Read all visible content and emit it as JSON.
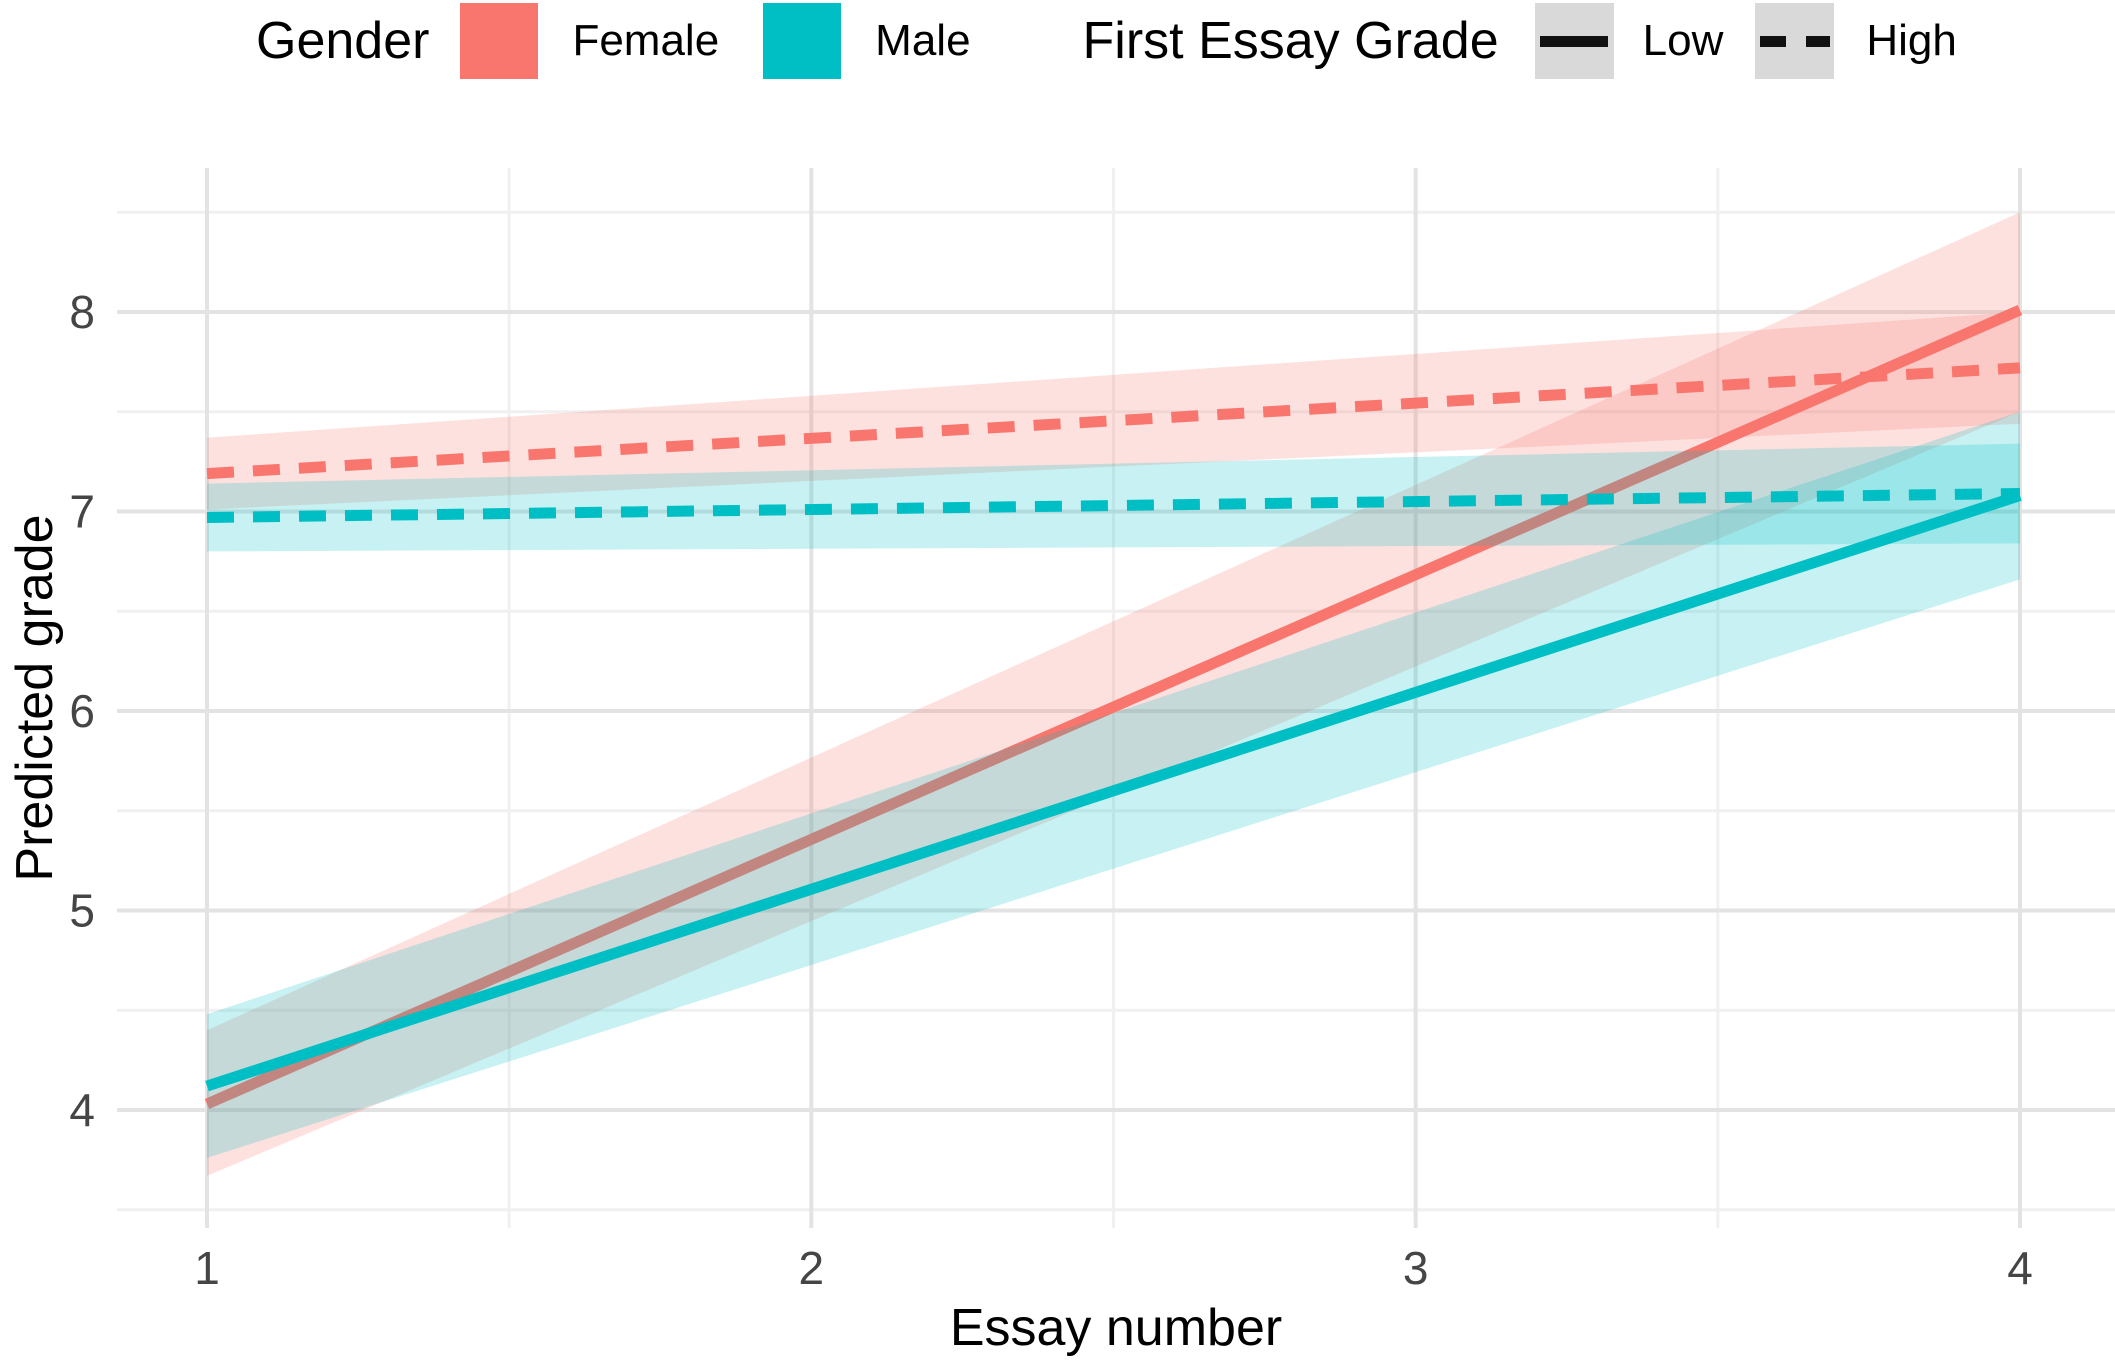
{
  "chart_data": {
    "type": "line",
    "title": "",
    "xlabel": "Essay number",
    "ylabel": "Predicted grade",
    "x_ticks": [
      1,
      2,
      3,
      4
    ],
    "y_ticks": [
      4,
      5,
      6,
      7,
      8
    ],
    "x_minor_gridlines": [
      1.5,
      2.5,
      3.5
    ],
    "y_minor_gridlines": [
      3.5,
      4.5,
      5.5,
      6.5,
      7.5,
      8.5
    ],
    "xlim": [
      0.85,
      4.16
    ],
    "ylim": [
      3.45,
      8.72
    ],
    "grid": "major and minor gridlines, light gray on white",
    "legend_position": "top",
    "ribbon_opacity": 0.22,
    "legend": {
      "gender_title": "Gender",
      "gender_entries": [
        {
          "label": "Female",
          "color": "#F8766D"
        },
        {
          "label": "Male",
          "color": "#00BFC4"
        }
      ],
      "linetype_title": "First Essay Grade",
      "linetype_entries": [
        {
          "label": "Low",
          "linetype": "solid"
        },
        {
          "label": "High",
          "linetype": "dashed"
        }
      ],
      "key_background": "#D9D9D9"
    },
    "series": [
      {
        "name": "Female Low",
        "gender": "Female",
        "first_essay_grade": "Low",
        "color": "#F8766D",
        "linetype": "solid",
        "x": [
          1,
          4
        ],
        "y": [
          4.03,
          8.01
        ],
        "ci_lower": [
          3.67,
          7.5
        ],
        "ci_upper": [
          4.4,
          8.5
        ]
      },
      {
        "name": "Female High",
        "gender": "Female",
        "first_essay_grade": "High",
        "color": "#F8766D",
        "linetype": "dashed",
        "x": [
          1,
          4
        ],
        "y": [
          7.19,
          7.72
        ],
        "ci_lower": [
          7.01,
          7.44
        ],
        "ci_upper": [
          7.37,
          8.0
        ]
      },
      {
        "name": "Male Low",
        "gender": "Male",
        "first_essay_grade": "Low",
        "color": "#00BFC4",
        "linetype": "solid",
        "x": [
          1,
          4
        ],
        "y": [
          4.12,
          7.08
        ],
        "ci_lower": [
          3.76,
          6.66
        ],
        "ci_upper": [
          4.48,
          7.5
        ]
      },
      {
        "name": "Male High",
        "gender": "Male",
        "first_essay_grade": "High",
        "color": "#00BFC4",
        "linetype": "dashed",
        "x": [
          1,
          4
        ],
        "y": [
          6.97,
          7.09
        ],
        "ci_lower": [
          6.8,
          6.84
        ],
        "ci_upper": [
          7.14,
          7.34
        ]
      }
    ]
  }
}
